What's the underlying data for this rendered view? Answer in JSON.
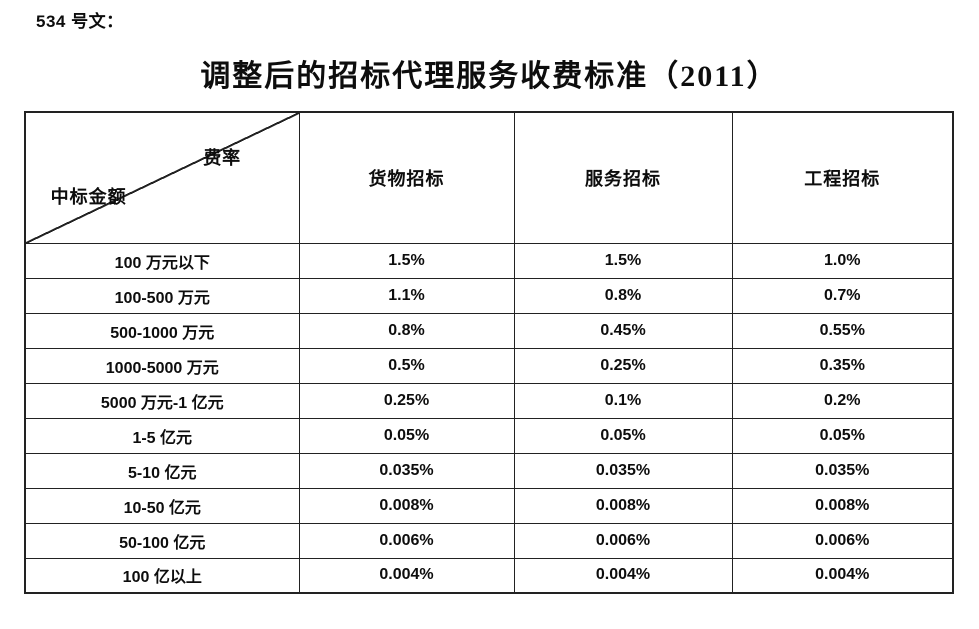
{
  "doc": {
    "ref_label": "534 号文：",
    "title": "调整后的招标代理服务收费标准（2011）"
  },
  "table": {
    "corner": {
      "top_right": "费率",
      "bottom_left": "中标金额"
    },
    "columns": [
      "货物招标",
      "服务招标",
      "工程招标"
    ],
    "rows": [
      {
        "label": "100 万元以下",
        "values": [
          "1.5%",
          "1.5%",
          "1.0%"
        ]
      },
      {
        "label": "100-500 万元",
        "values": [
          "1.1%",
          "0.8%",
          "0.7%"
        ]
      },
      {
        "label": "500-1000 万元",
        "values": [
          "0.8%",
          "0.45%",
          "0.55%"
        ]
      },
      {
        "label": "1000-5000 万元",
        "values": [
          "0.5%",
          "0.25%",
          "0.35%"
        ]
      },
      {
        "label": "5000 万元-1 亿元",
        "values": [
          "0.25%",
          "0.1%",
          "0.2%"
        ]
      },
      {
        "label": "1-5 亿元",
        "values": [
          "0.05%",
          "0.05%",
          "0.05%"
        ]
      },
      {
        "label": "5-10 亿元",
        "values": [
          "0.035%",
          "0.035%",
          "0.035%"
        ]
      },
      {
        "label": "10-50 亿元",
        "values": [
          "0.008%",
          "0.008%",
          "0.008%"
        ]
      },
      {
        "label": "50-100 亿元",
        "values": [
          "0.006%",
          "0.006%",
          "0.006%"
        ]
      },
      {
        "label": "100 亿以上",
        "values": [
          "0.004%",
          "0.004%",
          "0.004%"
        ]
      }
    ]
  }
}
